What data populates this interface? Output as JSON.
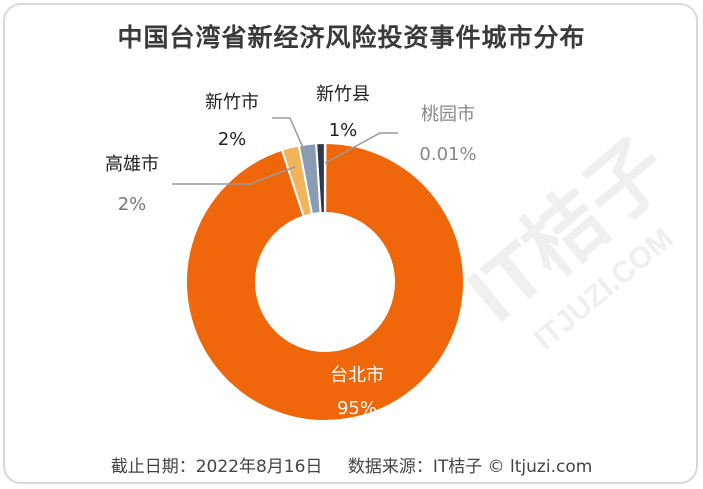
{
  "title": "中国台湾省新经济风险投资事件城市分布",
  "footer": {
    "date": "截止日期：2022年8月16日",
    "source": "数据来源：IT桔子 © ltjuzi.com"
  },
  "watermark": {
    "text": "IT桔子",
    "url": "ITJUZI.COM"
  },
  "chart_data": {
    "type": "pie",
    "donut": true,
    "categories": [
      "台北市",
      "高雄市",
      "新竹市",
      "新竹县",
      "桃园市"
    ],
    "values": [
      95,
      2,
      2,
      1,
      0.01
    ],
    "labels": [
      "95%",
      "2%",
      "2%",
      "1%",
      "0.01%"
    ],
    "colors": [
      "#f0660a",
      "#f2b45a",
      "#8a9bb5",
      "#2b3a4f",
      "#c9c9c9"
    ],
    "legend": "none"
  }
}
